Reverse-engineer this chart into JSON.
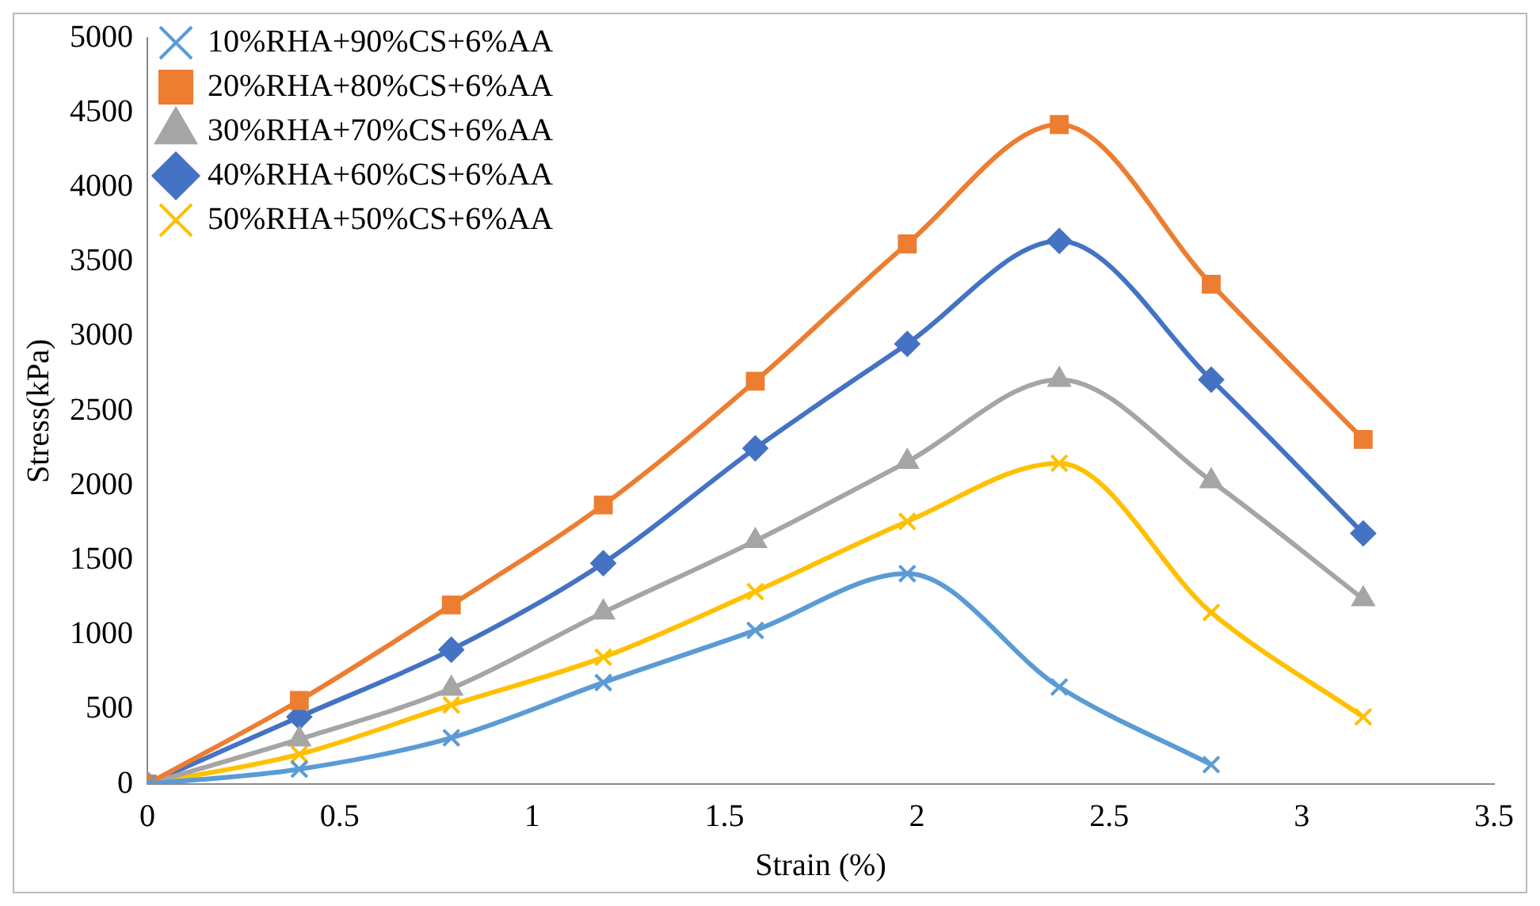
{
  "chart_data": {
    "type": "line",
    "xlabel": "Strain (%)",
    "ylabel": "Stress(kPa)",
    "x": [
      0,
      0.395,
      0.79,
      1.185,
      1.58,
      1.975,
      2.37,
      2.765,
      3.16
    ],
    "series": [
      {
        "name": "10%RHA+90%CS+6%AA",
        "color": "#5b9bd5",
        "marker": "cross",
        "values": [
          0,
          100,
          310,
          680,
          1030,
          1410,
          650,
          130,
          null
        ]
      },
      {
        "name": "20%RHA+80%CS+6%AA",
        "color": "#ed7d31",
        "marker": "square",
        "values": [
          0,
          560,
          1200,
          1870,
          2700,
          3620,
          4420,
          3350,
          2310
        ]
      },
      {
        "name": "30%RHA+70%CS+6%AA",
        "color": "#a5a5a5",
        "marker": "triangle",
        "values": [
          0,
          300,
          640,
          1150,
          1630,
          2160,
          2710,
          2030,
          1240
        ]
      },
      {
        "name": "40%RHA+60%CS+6%AA",
        "color": "#4472c4",
        "marker": "diamond",
        "values": [
          0,
          450,
          900,
          1480,
          2250,
          2950,
          3640,
          2710,
          1680
        ]
      },
      {
        "name": "50%RHA+50%CS+6%AA",
        "color": "#ffc000",
        "marker": "cross",
        "values": [
          0,
          200,
          530,
          850,
          1290,
          1760,
          2150,
          1150,
          450
        ]
      }
    ],
    "xlim": [
      0,
      3.5
    ],
    "xticks": [
      0,
      0.5,
      1,
      1.5,
      2,
      2.5,
      3,
      3.5
    ],
    "ylim": [
      0,
      5000
    ],
    "yticks": [
      0,
      500,
      1000,
      1500,
      2000,
      2500,
      3000,
      3500,
      4000,
      4500,
      5000
    ],
    "grid": false,
    "legend": "top left"
  }
}
